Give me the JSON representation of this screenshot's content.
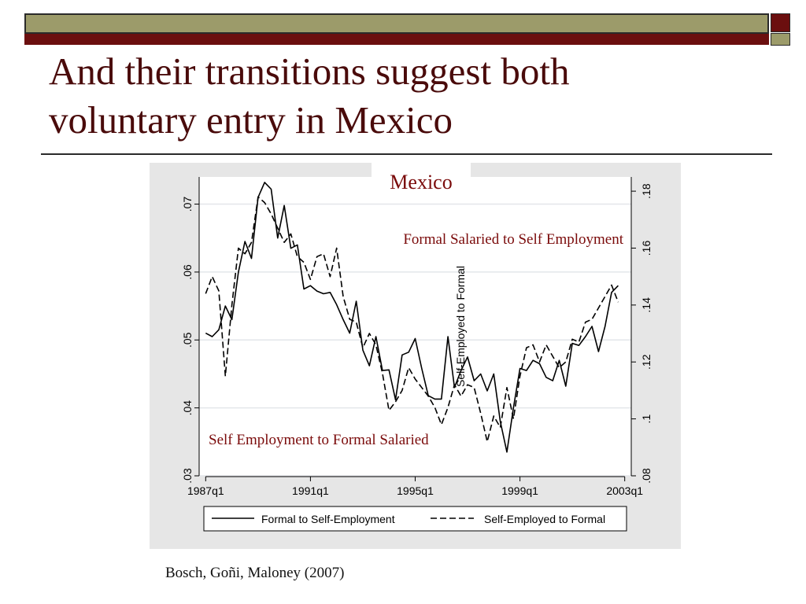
{
  "slide": {
    "title_line1": "And their transitions suggest both",
    "title_line2": "voluntary entry in Mexico",
    "citation": "Bosch, Goñi, Maloney (2007)",
    "colors": {
      "band": "#9c9b6a",
      "accent": "#6b0f0f",
      "title": "#4a0b0b",
      "annotation": "#7a0a0a",
      "panel": "#e6e6e6",
      "plot_bg": "#ffffff",
      "grid": "#e3e6ea"
    }
  },
  "chart_data": {
    "type": "line",
    "title": "Mexico",
    "xlabel": "",
    "x_tick_labels": [
      "1987q1",
      "1991q1",
      "1995q1",
      "1999q1",
      "2003q1"
    ],
    "x_tick_years": [
      1987,
      1991,
      1995,
      1999,
      2003
    ],
    "xlim": [
      1986.75,
      2003.25
    ],
    "y_left": {
      "label": "",
      "lim": [
        0.03,
        0.074
      ],
      "ticks": [
        0.03,
        0.04,
        0.05,
        0.06,
        0.07
      ],
      "tick_labels": [
        ".03",
        ".04",
        ".05",
        ".06",
        ".07"
      ]
    },
    "y_right": {
      "label": "Self-Employed to Formal",
      "lim": [
        0.08,
        0.185
      ],
      "ticks": [
        0.08,
        0.1,
        0.12,
        0.14,
        0.16,
        0.18
      ],
      "tick_labels": [
        ".08",
        ".1",
        ".12",
        ".14",
        ".16",
        ".18"
      ]
    },
    "grid": true,
    "legend": "bottom",
    "annotations": [
      {
        "text": "Formal Salaried to Self Employment",
        "position": "upper-right"
      },
      {
        "text": "Self Employment to Formal Salaried",
        "position": "lower-left"
      }
    ],
    "series": [
      {
        "name": "Formal to Self-Employment",
        "axis": "left",
        "style": "solid",
        "x": [
          1987.0,
          1987.25,
          1987.5,
          1987.75,
          1988.0,
          1988.25,
          1988.5,
          1988.75,
          1989.0,
          1989.25,
          1989.5,
          1989.75,
          1990.0,
          1990.25,
          1990.5,
          1990.75,
          1991.0,
          1991.25,
          1991.5,
          1991.75,
          1992.0,
          1992.25,
          1992.5,
          1992.75,
          1993.0,
          1993.25,
          1993.5,
          1993.75,
          1994.0,
          1994.25,
          1994.5,
          1994.75,
          1995.0,
          1995.25,
          1995.5,
          1995.75,
          1996.0,
          1996.25,
          1996.5,
          1996.75,
          1997.0,
          1997.25,
          1997.5,
          1997.75,
          1998.0,
          1998.25,
          1998.5,
          1998.75,
          1999.0,
          1999.25,
          1999.5,
          1999.75,
          2000.0,
          2000.25,
          2000.5,
          2000.75,
          2001.0,
          2001.25,
          2001.5,
          2001.75,
          2002.0,
          2002.25,
          2002.5,
          2002.75
        ],
        "y": [
          0.051,
          0.0505,
          0.0515,
          0.055,
          0.053,
          0.06,
          0.0645,
          0.062,
          0.071,
          0.0732,
          0.0722,
          0.065,
          0.0698,
          0.0635,
          0.064,
          0.0575,
          0.058,
          0.0572,
          0.0568,
          0.057,
          0.0552,
          0.053,
          0.051,
          0.0557,
          0.0485,
          0.0462,
          0.0505,
          0.0455,
          0.0456,
          0.0412,
          0.0478,
          0.0482,
          0.0502,
          0.0458,
          0.0418,
          0.0413,
          0.0413,
          0.0505,
          0.043,
          0.0455,
          0.0475,
          0.044,
          0.045,
          0.0425,
          0.045,
          0.038,
          0.0335,
          0.04,
          0.0458,
          0.0455,
          0.047,
          0.0465,
          0.0445,
          0.044,
          0.047,
          0.0432,
          0.0495,
          0.0492,
          0.0505,
          0.052,
          0.0483,
          0.052,
          0.057,
          0.058
        ]
      },
      {
        "name": "Self-Employed to Formal",
        "axis": "right",
        "style": "dashed",
        "x": [
          1987.0,
          1987.25,
          1987.5,
          1987.75,
          1988.0,
          1988.25,
          1988.5,
          1988.75,
          1989.0,
          1989.25,
          1989.5,
          1989.75,
          1990.0,
          1990.25,
          1990.5,
          1990.75,
          1991.0,
          1991.25,
          1991.5,
          1991.75,
          1992.0,
          1992.25,
          1992.5,
          1992.75,
          1993.0,
          1993.25,
          1993.5,
          1993.75,
          1994.0,
          1994.25,
          1994.5,
          1994.75,
          1995.0,
          1995.25,
          1995.5,
          1995.75,
          1996.0,
          1996.25,
          1996.5,
          1996.75,
          1997.0,
          1997.25,
          1997.5,
          1997.75,
          1998.0,
          1998.25,
          1998.5,
          1998.75,
          1999.0,
          1999.25,
          1999.5,
          1999.75,
          2000.0,
          2000.25,
          2000.5,
          2000.75,
          2001.0,
          2001.25,
          2001.5,
          2001.75,
          2002.0,
          2002.25,
          2002.5,
          2002.75
        ],
        "y": [
          0.144,
          0.15,
          0.145,
          0.115,
          0.14,
          0.16,
          0.158,
          0.162,
          0.178,
          0.176,
          0.172,
          0.167,
          0.162,
          0.165,
          0.157,
          0.155,
          0.149,
          0.157,
          0.158,
          0.15,
          0.16,
          0.143,
          0.135,
          0.134,
          0.125,
          0.13,
          0.126,
          0.116,
          0.103,
          0.106,
          0.11,
          0.118,
          0.114,
          0.111,
          0.108,
          0.104,
          0.098,
          0.104,
          0.112,
          0.108,
          0.112,
          0.111,
          0.102,
          0.092,
          0.101,
          0.097,
          0.111,
          0.1,
          0.115,
          0.125,
          0.126,
          0.12,
          0.126,
          0.122,
          0.118,
          0.12,
          0.128,
          0.127,
          0.134,
          0.135,
          0.139,
          0.143,
          0.147,
          0.141
        ]
      }
    ]
  }
}
